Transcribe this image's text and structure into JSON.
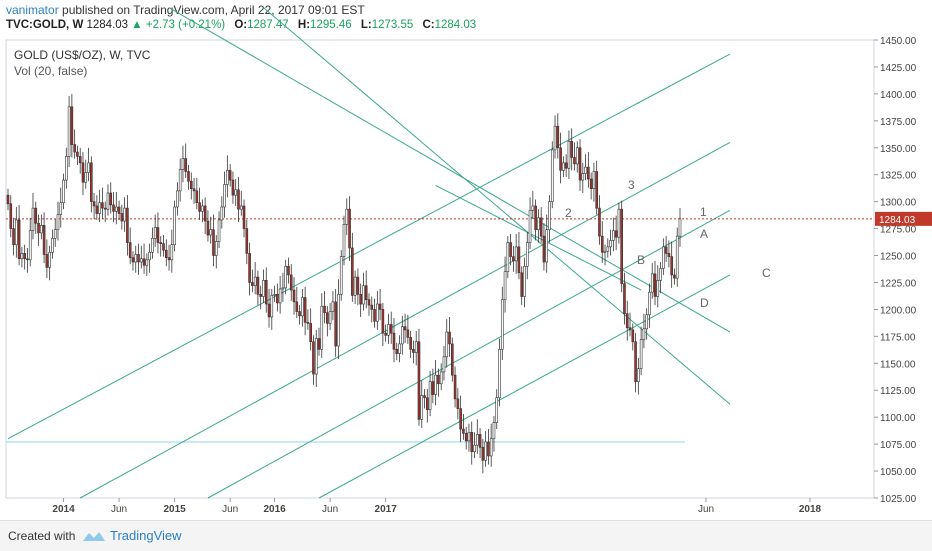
{
  "header": {
    "author": "vanimator",
    "published_text": "published on TradingView.com, April 22, 2017 09:01 EST",
    "symbol": "TVC:GOLD, W",
    "last": "1284.03",
    "change": "▲ +2.73 (+0.21%)",
    "open_label": "O:",
    "open": "1287.47",
    "high_label": "H:",
    "high": "1295.46",
    "low_label": "L:",
    "low": "1273.55",
    "close_label": "C:",
    "close": "1284.03"
  },
  "footer": {
    "created_with": "Created with",
    "brand": "TradingView"
  },
  "chart_data": {
    "type": "candlestick",
    "title": "GOLD (US$/OZ), W, TVC",
    "volume_label": "Vol (20, false)",
    "last_price": 1284.03,
    "ylim": [
      1025,
      1450
    ],
    "y_ticks": [
      1025,
      1050,
      1075,
      1100,
      1125,
      1150,
      1175,
      1200,
      1225,
      1250,
      1275,
      1300,
      1325,
      1350,
      1375,
      1400,
      1425,
      1450
    ],
    "x_ticks": [
      "2014",
      "Jun",
      "2015",
      "Jun",
      "2016",
      "Jun",
      "2017",
      "Jun",
      "2018"
    ],
    "annotations": [
      "1",
      "2",
      "3",
      "A",
      "B",
      "C",
      "D"
    ],
    "colors": {
      "up": "#ffffff",
      "down": "#a0322c",
      "trendline": "#3aa890",
      "price_line": "#c0392b",
      "support_line": "#8fd6e8"
    },
    "closes": [
      1298,
      1275,
      1260,
      1283,
      1247,
      1252,
      1247,
      1246,
      1273,
      1294,
      1280,
      1271,
      1278,
      1251,
      1239,
      1253,
      1266,
      1274,
      1288,
      1299,
      1320,
      1342,
      1388,
      1353,
      1346,
      1342,
      1336,
      1318,
      1327,
      1336,
      1300,
      1296,
      1289,
      1299,
      1294,
      1293,
      1308,
      1297,
      1291,
      1295,
      1289,
      1282,
      1294,
      1262,
      1248,
      1244,
      1251,
      1244,
      1247,
      1241,
      1246,
      1253,
      1266,
      1276,
      1262,
      1261,
      1255,
      1248,
      1246,
      1260,
      1295,
      1310,
      1330,
      1340,
      1328,
      1319,
      1312,
      1310,
      1299,
      1291,
      1296,
      1282,
      1269,
      1274,
      1250,
      1263,
      1283,
      1295,
      1316,
      1329,
      1320,
      1306,
      1311,
      1293,
      1296,
      1275,
      1252,
      1225,
      1222,
      1230,
      1214,
      1212,
      1227,
      1205,
      1193,
      1213,
      1214,
      1206,
      1219,
      1220,
      1240,
      1232,
      1218,
      1207,
      1198,
      1194,
      1211,
      1188,
      1187,
      1170,
      1140,
      1173,
      1163,
      1203,
      1197,
      1187,
      1198,
      1207,
      1166,
      1214,
      1249,
      1279,
      1293,
      1257,
      1213,
      1230,
      1214,
      1205,
      1222,
      1209,
      1204,
      1200,
      1189,
      1205,
      1200,
      1178,
      1176,
      1186,
      1178,
      1163,
      1159,
      1168,
      1184,
      1181,
      1174,
      1163,
      1160,
      1170,
      1098,
      1120,
      1118,
      1107,
      1133,
      1121,
      1139,
      1131,
      1142,
      1156,
      1179,
      1168,
      1139,
      1117,
      1108,
      1089,
      1085,
      1078,
      1086,
      1068,
      1074,
      1084,
      1072,
      1060,
      1077,
      1064,
      1080,
      1095,
      1118,
      1163,
      1209,
      1235,
      1262,
      1249,
      1245,
      1258,
      1234,
      1212,
      1240,
      1262,
      1292,
      1296,
      1274,
      1285,
      1268,
      1244,
      1274,
      1300,
      1348,
      1370,
      1350,
      1329,
      1336,
      1331,
      1356,
      1341,
      1335,
      1350,
      1320,
      1326,
      1332,
      1321,
      1312,
      1328,
      1294,
      1268,
      1253,
      1254,
      1258,
      1264,
      1273,
      1267,
      1293,
      1224,
      1196,
      1183,
      1181,
      1170,
      1133,
      1145,
      1172,
      1182,
      1195,
      1216,
      1233,
      1212,
      1227,
      1238,
      1258,
      1252,
      1249,
      1232,
      1229,
      1268,
      1284
    ]
  }
}
